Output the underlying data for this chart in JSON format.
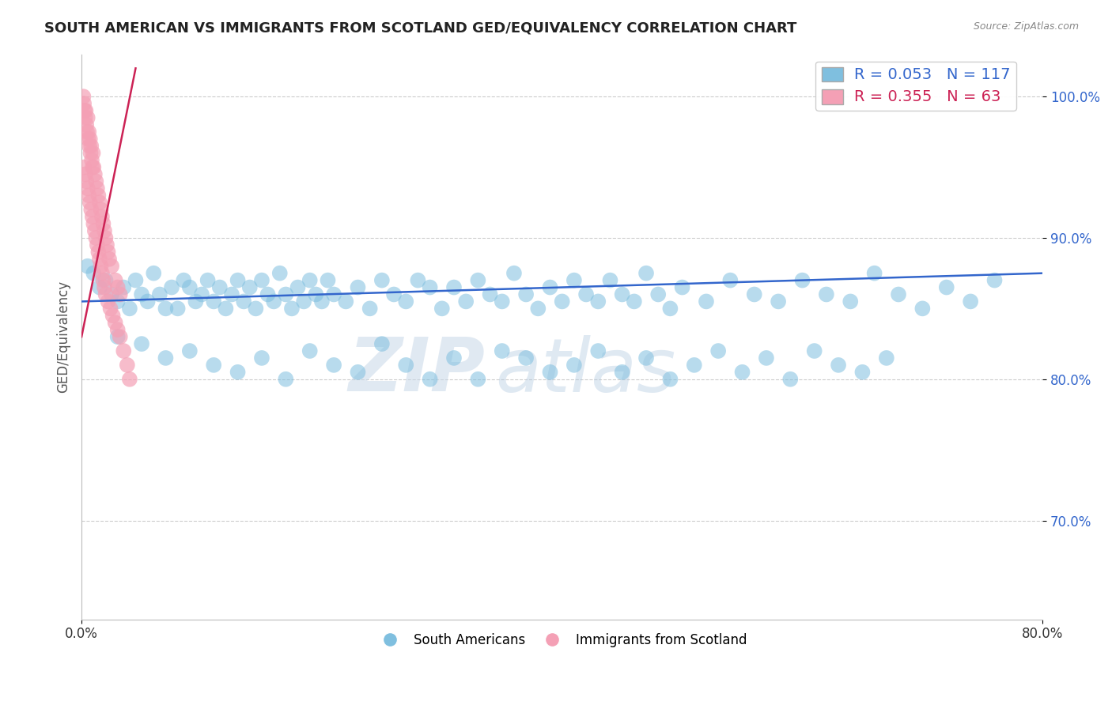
{
  "title": "SOUTH AMERICAN VS IMMIGRANTS FROM SCOTLAND GED/EQUIVALENCY CORRELATION CHART",
  "source": "Source: ZipAtlas.com",
  "ylabel": "GED/Equivalency",
  "xlim": [
    0.0,
    80.0
  ],
  "ylim": [
    63.0,
    103.0
  ],
  "yticks": [
    70.0,
    80.0,
    90.0,
    100.0
  ],
  "ytick_labels": [
    "70.0%",
    "80.0%",
    "90.0%",
    "100.0%"
  ],
  "xticks": [
    0.0,
    80.0
  ],
  "xtick_labels": [
    "0.0%",
    "80.0%"
  ],
  "legend_r1": "R = 0.053",
  "legend_n1": "N = 117",
  "legend_r2": "R = 0.355",
  "legend_n2": "N = 63",
  "blue_color": "#7fbfdf",
  "pink_color": "#f4a0b5",
  "blue_line_color": "#3366cc",
  "pink_line_color": "#cc2255",
  "watermark_zip": "ZIP",
  "watermark_atlas": "atlas",
  "south_american_x": [
    0.5,
    1.0,
    1.5,
    2.0,
    2.5,
    3.0,
    3.5,
    4.0,
    4.5,
    5.0,
    5.5,
    6.0,
    6.5,
    7.0,
    7.5,
    8.0,
    8.5,
    9.0,
    9.5,
    10.0,
    10.5,
    11.0,
    11.5,
    12.0,
    12.5,
    13.0,
    13.5,
    14.0,
    14.5,
    15.0,
    15.5,
    16.0,
    16.5,
    17.0,
    17.5,
    18.0,
    18.5,
    19.0,
    19.5,
    20.0,
    20.5,
    21.0,
    22.0,
    23.0,
    24.0,
    25.0,
    26.0,
    27.0,
    28.0,
    29.0,
    30.0,
    31.0,
    32.0,
    33.0,
    34.0,
    35.0,
    36.0,
    37.0,
    38.0,
    39.0,
    40.0,
    41.0,
    42.0,
    43.0,
    44.0,
    45.0,
    46.0,
    47.0,
    48.0,
    49.0,
    50.0,
    52.0,
    54.0,
    56.0,
    58.0,
    60.0,
    62.0,
    64.0,
    66.0,
    68.0,
    70.0,
    72.0,
    74.0,
    76.0,
    3.0,
    5.0,
    7.0,
    9.0,
    11.0,
    13.0,
    15.0,
    17.0,
    19.0,
    21.0,
    23.0,
    25.0,
    27.0,
    29.0,
    31.0,
    33.0,
    35.0,
    37.0,
    39.0,
    41.0,
    43.0,
    45.0,
    47.0,
    49.0,
    51.0,
    53.0,
    55.0,
    57.0,
    59.0,
    61.0,
    63.0,
    65.0,
    67.0
  ],
  "south_american_y": [
    88.0,
    87.5,
    86.5,
    87.0,
    86.0,
    85.5,
    86.5,
    85.0,
    87.0,
    86.0,
    85.5,
    87.5,
    86.0,
    85.0,
    86.5,
    85.0,
    87.0,
    86.5,
    85.5,
    86.0,
    87.0,
    85.5,
    86.5,
    85.0,
    86.0,
    87.0,
    85.5,
    86.5,
    85.0,
    87.0,
    86.0,
    85.5,
    87.5,
    86.0,
    85.0,
    86.5,
    85.5,
    87.0,
    86.0,
    85.5,
    87.0,
    86.0,
    85.5,
    86.5,
    85.0,
    87.0,
    86.0,
    85.5,
    87.0,
    86.5,
    85.0,
    86.5,
    85.5,
    87.0,
    86.0,
    85.5,
    87.5,
    86.0,
    85.0,
    86.5,
    85.5,
    87.0,
    86.0,
    85.5,
    87.0,
    86.0,
    85.5,
    87.5,
    86.0,
    85.0,
    86.5,
    85.5,
    87.0,
    86.0,
    85.5,
    87.0,
    86.0,
    85.5,
    87.5,
    86.0,
    85.0,
    86.5,
    85.5,
    87.0,
    83.0,
    82.5,
    81.5,
    82.0,
    81.0,
    80.5,
    81.5,
    80.0,
    82.0,
    81.0,
    80.5,
    82.5,
    81.0,
    80.0,
    81.5,
    80.0,
    82.0,
    81.5,
    80.5,
    81.0,
    82.0,
    80.5,
    81.5,
    80.0,
    81.0,
    82.0,
    80.5,
    81.5,
    80.0,
    82.0,
    81.0,
    80.5,
    81.5
  ],
  "scotland_x": [
    0.15,
    0.2,
    0.25,
    0.3,
    0.35,
    0.4,
    0.45,
    0.5,
    0.55,
    0.6,
    0.65,
    0.7,
    0.75,
    0.8,
    0.85,
    0.9,
    0.95,
    1.0,
    1.1,
    1.2,
    1.3,
    1.4,
    1.5,
    1.6,
    1.7,
    1.8,
    1.9,
    2.0,
    2.1,
    2.2,
    2.3,
    2.5,
    2.8,
    3.0,
    3.2,
    0.2,
    0.3,
    0.4,
    0.5,
    0.6,
    0.7,
    0.8,
    0.9,
    1.0,
    1.1,
    1.2,
    1.3,
    1.4,
    1.5,
    1.6,
    1.7,
    1.8,
    1.9,
    2.0,
    2.2,
    2.4,
    2.6,
    2.8,
    3.0,
    3.2,
    3.5,
    3.8,
    4.0
  ],
  "scotland_y": [
    100.0,
    99.5,
    99.0,
    98.5,
    99.0,
    98.0,
    97.5,
    98.5,
    97.0,
    97.5,
    96.5,
    97.0,
    96.0,
    96.5,
    95.5,
    95.0,
    96.0,
    95.0,
    94.5,
    94.0,
    93.5,
    93.0,
    92.5,
    92.0,
    91.5,
    91.0,
    90.5,
    90.0,
    89.5,
    89.0,
    88.5,
    88.0,
    87.0,
    86.5,
    86.0,
    95.0,
    94.5,
    94.0,
    93.5,
    93.0,
    92.5,
    92.0,
    91.5,
    91.0,
    90.5,
    90.0,
    89.5,
    89.0,
    88.5,
    88.0,
    87.5,
    87.0,
    86.5,
    86.0,
    85.5,
    85.0,
    84.5,
    84.0,
    83.5,
    83.0,
    82.0,
    81.0,
    80.0
  ],
  "blue_trend_x": [
    0.0,
    80.0
  ],
  "blue_trend_y": [
    85.5,
    87.5
  ],
  "pink_trend_x": [
    0.0,
    4.5
  ],
  "pink_trend_y": [
    83.0,
    102.0
  ]
}
